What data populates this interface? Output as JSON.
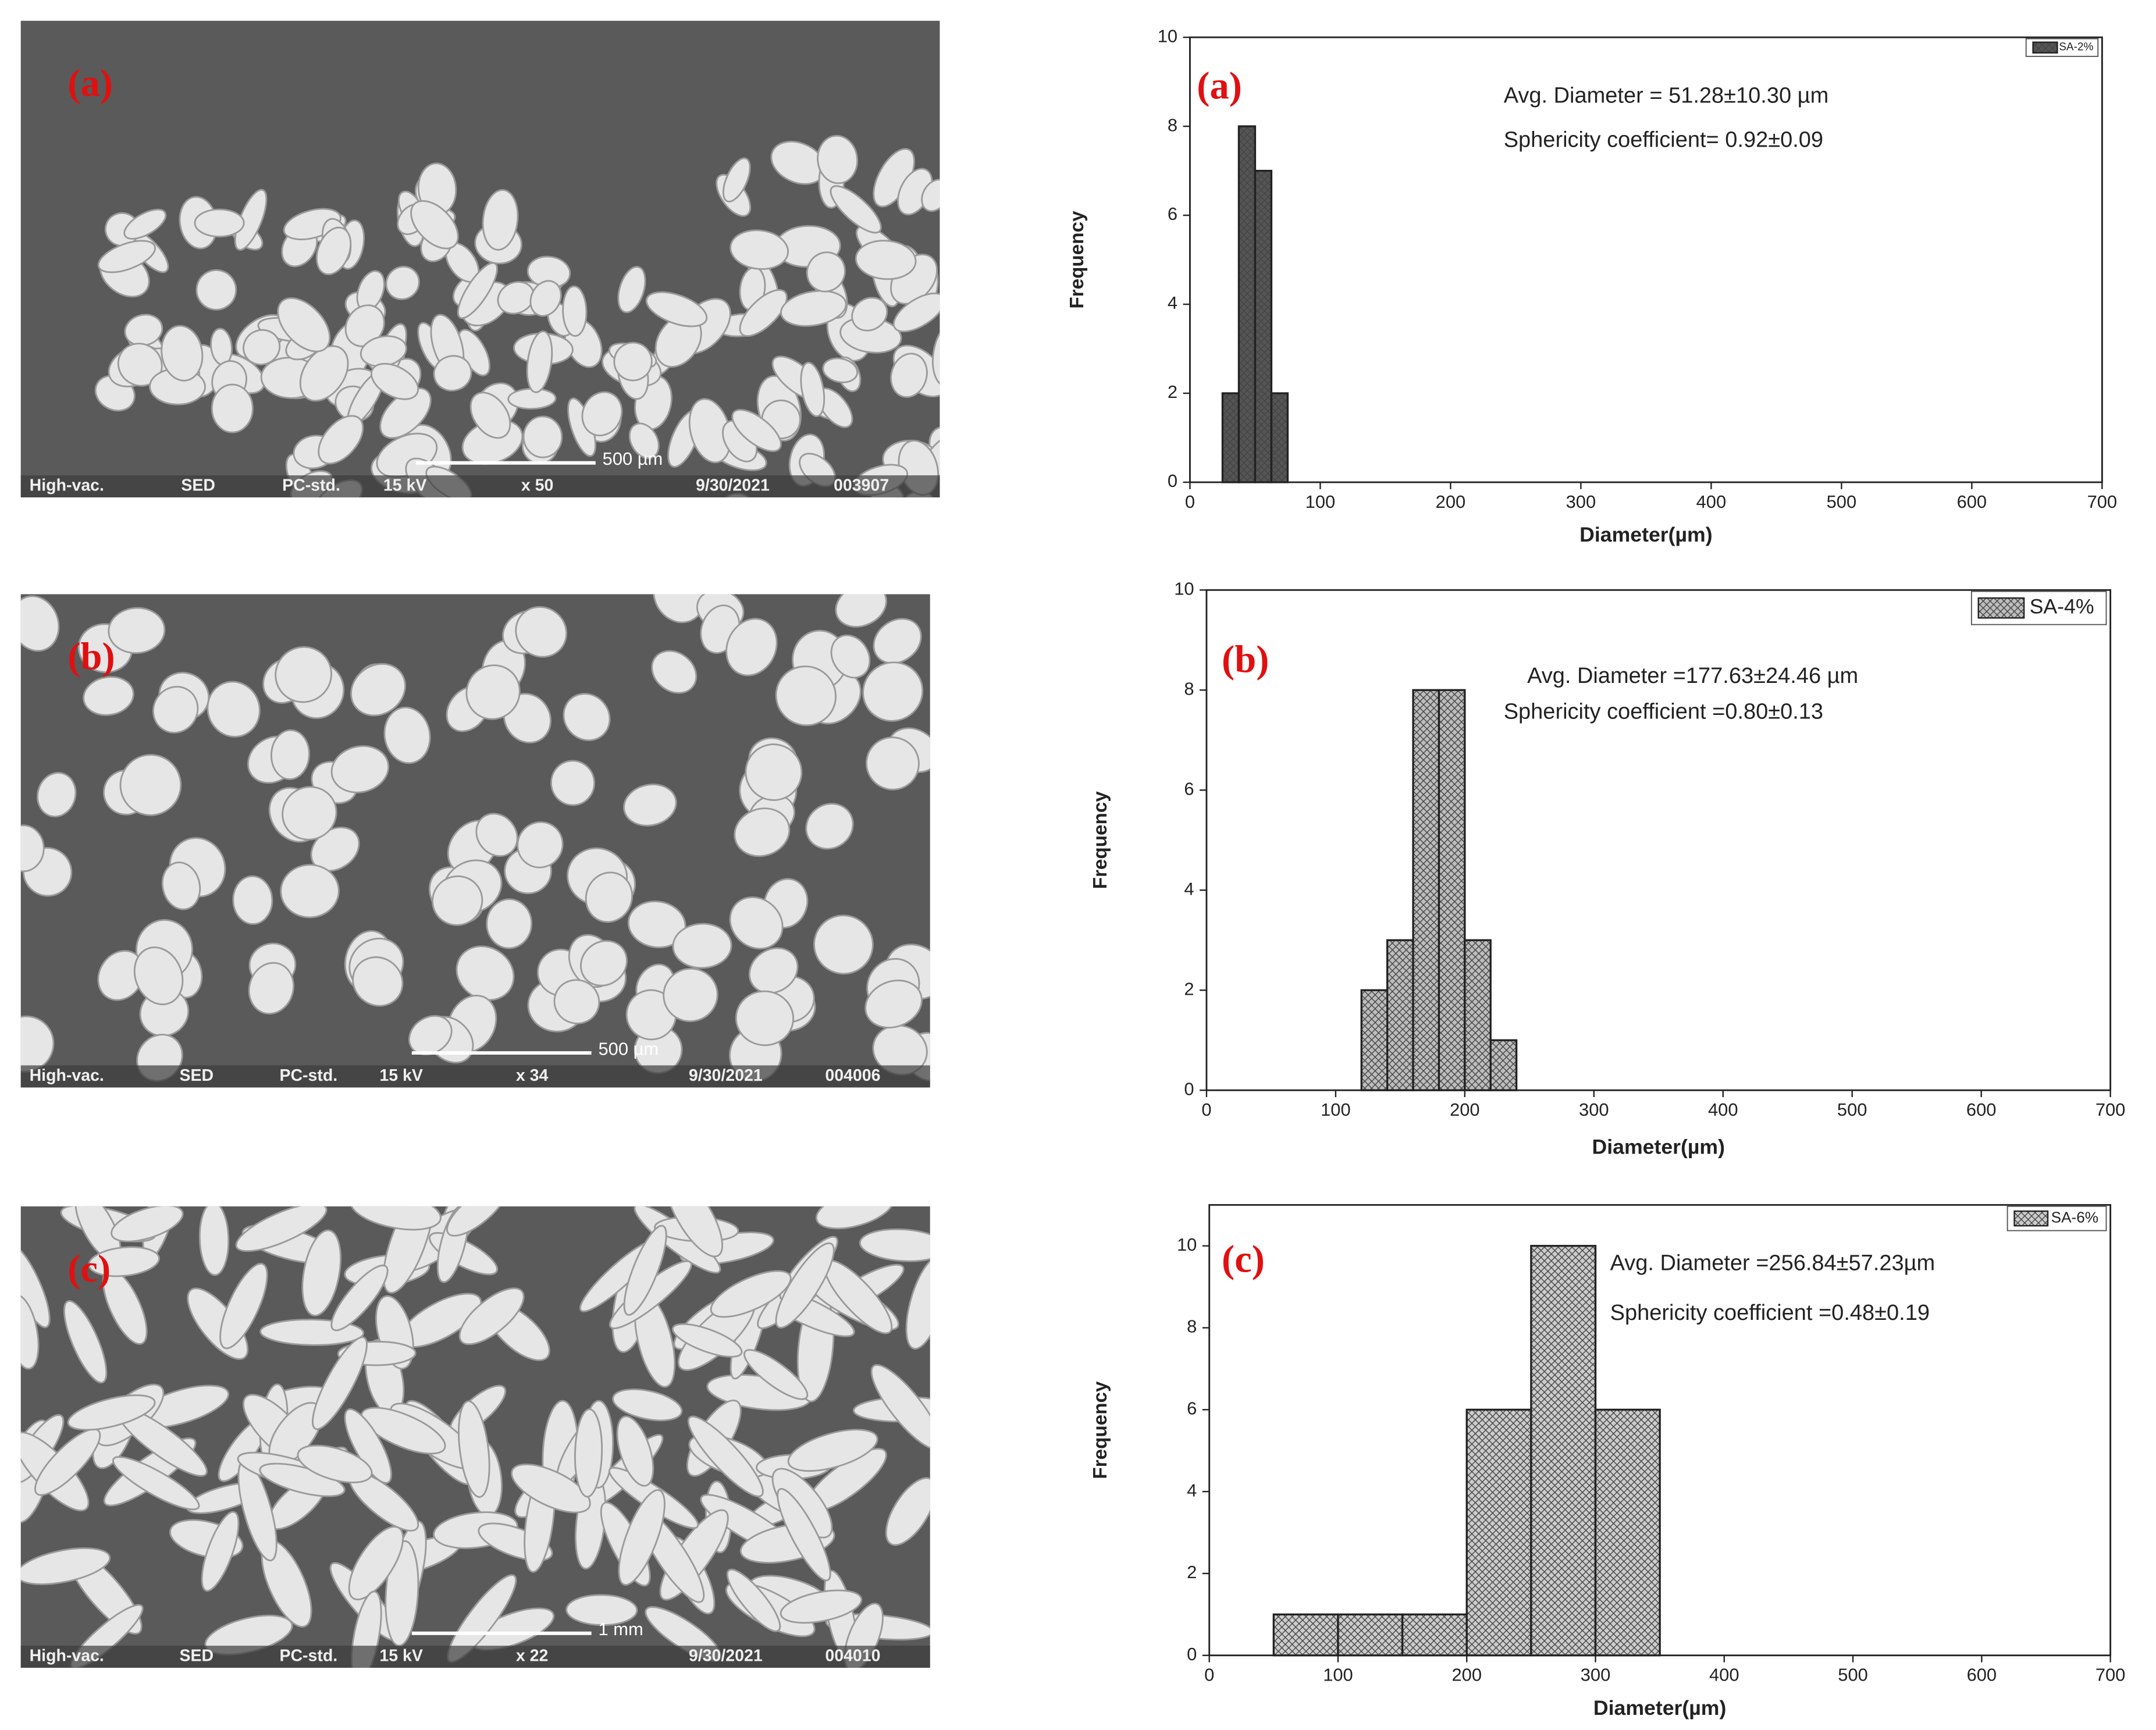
{
  "images": [
    {
      "label": "(a)",
      "scale_bar": "500 µm",
      "info": [
        "High-vac.",
        "SED",
        "PC-std.",
        "15 kV",
        "x 50",
        "9/30/2021",
        "003907"
      ]
    },
    {
      "label": "(b)",
      "scale_bar": "500 µm",
      "info": [
        "High-vac.",
        "SED",
        "PC-std.",
        "15 kV",
        "x 34",
        "9/30/2021",
        "004006"
      ]
    },
    {
      "label": "(c)",
      "scale_bar": "1 mm",
      "info": [
        "High-vac.",
        "SED",
        "PC-std.",
        "15 kV",
        "x 22",
        "9/30/2021",
        "004010"
      ]
    }
  ],
  "chart_data": [
    {
      "type": "histogram",
      "label": "(a)",
      "annotations": [
        "Avg. Diameter = 51.28±10.30 µm",
        "Sphericity coefficient= 0.92±0.09"
      ],
      "xlabel": "Diameter(µm)",
      "ylabel": "Frequency",
      "bins": [
        25,
        37.5,
        50,
        62.5,
        75
      ],
      "series": [
        {
          "name": "SA-2%",
          "color": "#555555",
          "values": [
            2,
            8,
            7,
            2
          ]
        }
      ],
      "xlim": [
        0,
        700
      ],
      "xticks": [
        0,
        100,
        200,
        300,
        400,
        500,
        600,
        700
      ],
      "ylim": [
        0,
        10
      ],
      "yticks": [
        0,
        2,
        4,
        6,
        8,
        10
      ],
      "legend": "upper right"
    },
    {
      "type": "histogram",
      "label": "(b)",
      "annotations": [
        "Avg. Diameter =177.63±24.46 µm",
        "Sphericity coefficient =0.80±0.13"
      ],
      "xlabel": "Diameter(µm)",
      "ylabel": "Frequency",
      "bins": [
        120,
        140,
        160,
        180,
        200,
        220,
        240
      ],
      "series": [
        {
          "name": "SA-4%",
          "color": "#bdbdbd",
          "values": [
            2,
            3,
            8,
            8,
            3,
            1
          ]
        }
      ],
      "xlim": [
        0,
        700
      ],
      "xticks": [
        0,
        100,
        200,
        300,
        400,
        500,
        600,
        700
      ],
      "ylim": [
        0,
        10
      ],
      "yticks": [
        0,
        2,
        4,
        6,
        8,
        10
      ],
      "legend": "upper right"
    },
    {
      "type": "histogram",
      "label": "(c)",
      "annotations": [
        "Avg. Diameter =256.84±57.23µm",
        "Sphericity coefficient =0.48±0.19"
      ],
      "xlabel": "Diameter(µm)",
      "ylabel": "Frequency",
      "bins": [
        50,
        100,
        150,
        200,
        250,
        300,
        350
      ],
      "series": [
        {
          "name": "SA-6%",
          "color": "#cccccc",
          "values": [
            1,
            1,
            1,
            6,
            10,
            6
          ]
        }
      ],
      "xlim": [
        0,
        700
      ],
      "xticks": [
        0,
        100,
        200,
        300,
        400,
        500,
        600,
        700
      ],
      "ylim": [
        0,
        11
      ],
      "yticks": [
        0,
        2,
        4,
        6,
        8,
        10
      ],
      "legend": "upper right"
    }
  ]
}
